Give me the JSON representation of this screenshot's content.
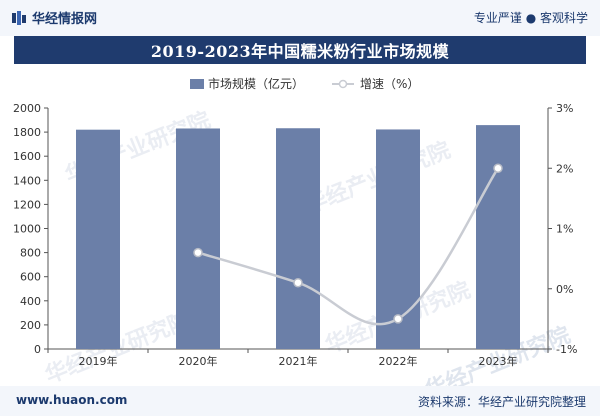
{
  "header": {
    "logo_text": "华经情报网",
    "tagline": "专业严谨 ● 客观科学"
  },
  "footer": {
    "site": "www.huaon.com",
    "source": "资料来源：华经产业研究院整理"
  },
  "watermark": {
    "text": "华经产业研究院",
    "url": "www.huaon.com"
  },
  "colors": {
    "bar": "#6b7fa8",
    "line": "#c9ccd3",
    "brand": "#1f3b6e"
  },
  "chart_data": {
    "type": "bar",
    "title": "2019-2023年中国糯米粉行业市场规模",
    "categories": [
      "2019年",
      "2020年",
      "2021年",
      "2022年",
      "2023年"
    ],
    "series": [
      {
        "name": "市场规模（亿元）",
        "type": "bar",
        "axis": "left",
        "values": [
          1820,
          1830,
          1832,
          1822,
          1858
        ]
      },
      {
        "name": "增速（%）",
        "type": "line",
        "axis": "right",
        "values": [
          null,
          0.6,
          0.1,
          -0.5,
          2.0
        ]
      }
    ],
    "y_left": {
      "min": 0,
      "max": 2000,
      "step": 200,
      "ticks": [
        "0",
        "200",
        "400",
        "600",
        "800",
        "1000",
        "1200",
        "1400",
        "1600",
        "1800",
        "2000"
      ]
    },
    "y_right": {
      "min": -1,
      "max": 3,
      "step": 1,
      "ticks": [
        "-1%",
        "0%",
        "1%",
        "2%",
        "3%"
      ]
    },
    "legend_position": "top-center",
    "grid": false
  }
}
